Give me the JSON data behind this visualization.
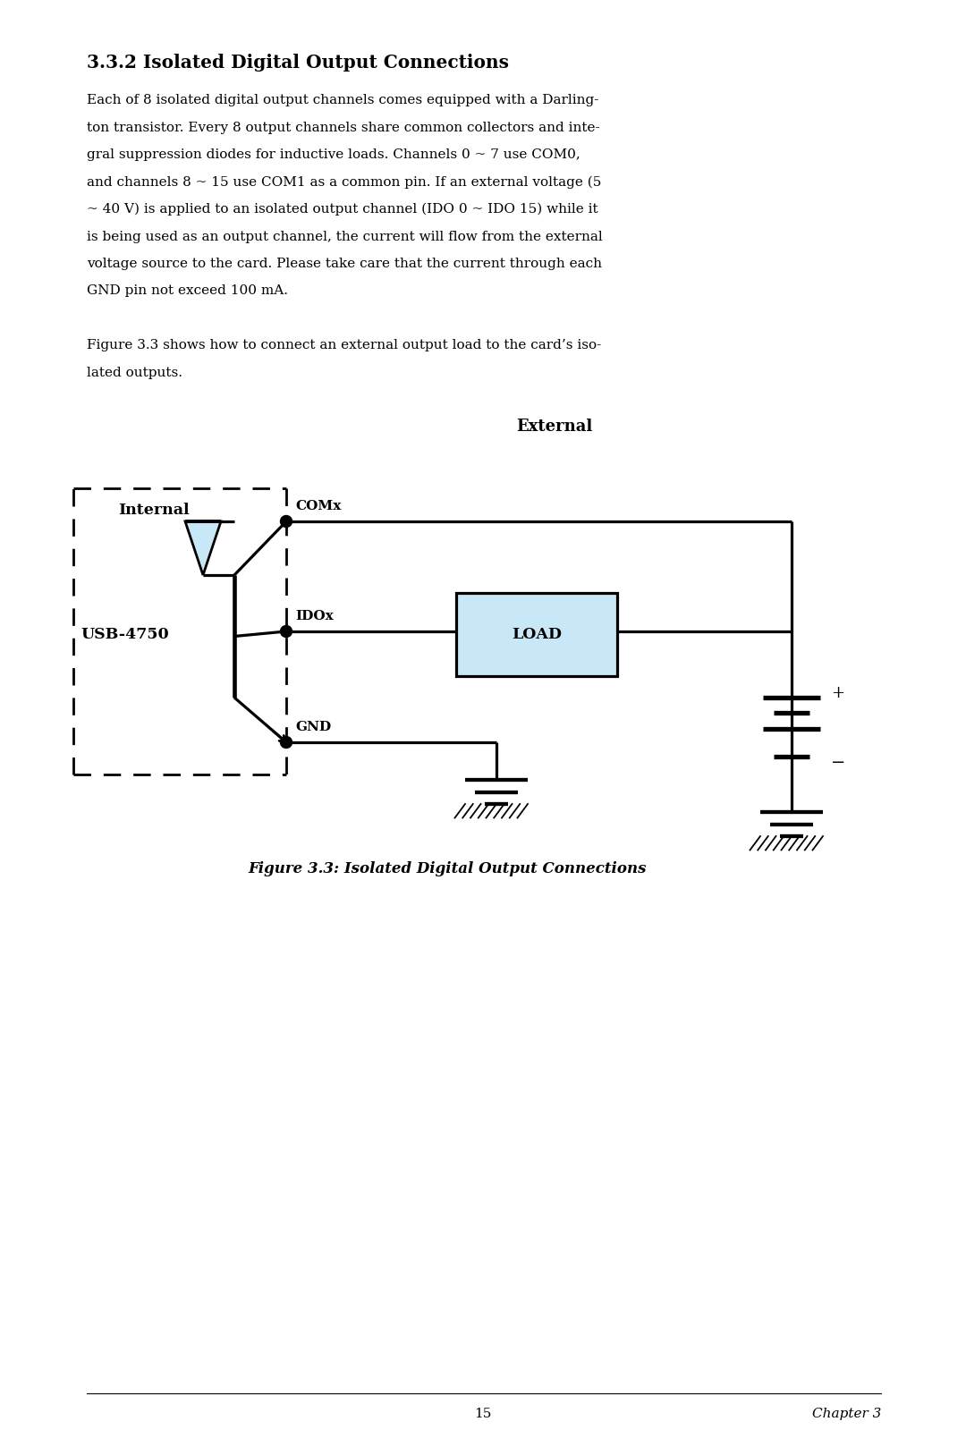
{
  "title": "3.3.2 Isolated Digital Output Connections",
  "body_lines": [
    "Each of 8 isolated digital output channels comes equipped with a Darling-",
    "ton transistor. Every 8 output channels share common collectors and inte-",
    "gral suppression diodes for inductive loads. Channels 0 ~ 7 use COM0,",
    "and channels 8 ~ 15 use COM1 as a common pin. If an external voltage (5",
    "~ 40 V) is applied to an isolated output channel (IDO 0 ~ IDO 15) while it",
    "is being used as an output channel, the current will flow from the external",
    "voltage source to the card. Please take care that the current through each",
    "GND pin not exceed 100 mA."
  ],
  "intro_line1": "Figure 3.3 shows how to connect an external output load to the card’s iso-",
  "intro_line2": "lated outputs.",
  "figure_caption": "Figure 3.3: Isolated Digital Output Connections",
  "page_number": "15",
  "chapter": "Chapter 3",
  "bg_color": "#ffffff",
  "text_color": "#000000",
  "load_fill_color": "#c8e8f8",
  "diode_fill_color": "#c8e8f8"
}
